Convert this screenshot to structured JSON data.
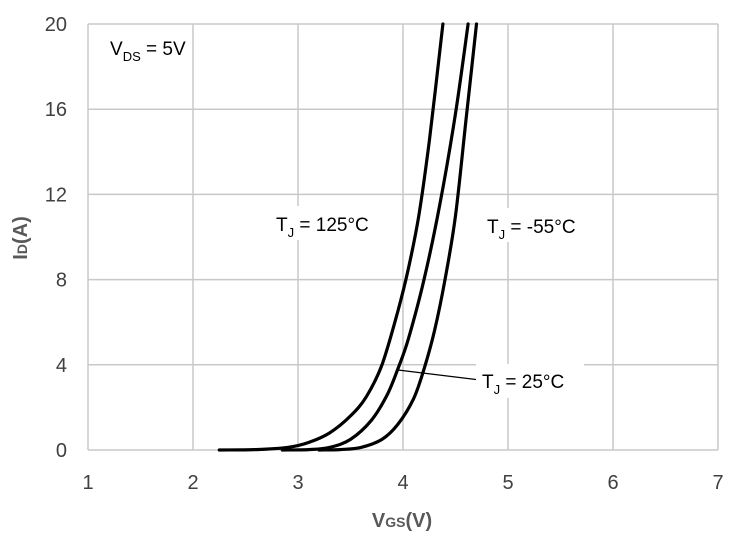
{
  "chart_data": {
    "type": "line",
    "title": "",
    "xlabel": {
      "main": "V",
      "sub": "GS",
      "unit": "(V)"
    },
    "ylabel": {
      "main": "I",
      "sub": "D",
      "unit": "(A)"
    },
    "xlim": [
      1,
      7
    ],
    "ylim": [
      0,
      20
    ],
    "xticks": [
      "1",
      "2",
      "3",
      "4",
      "5",
      "6",
      "7"
    ],
    "yticks": [
      "0",
      "4",
      "8",
      "12",
      "16",
      "20"
    ],
    "grid": true,
    "condition": {
      "main": "V",
      "sub": "DS",
      "rest": " = 5V"
    },
    "series": [
      {
        "name": "TJ = 125°C",
        "label": {
          "main": "T",
          "sub": "J",
          "rest": " = 125°C"
        },
        "points": [
          [
            2.25,
            0
          ],
          [
            2.6,
            0.02
          ],
          [
            2.9,
            0.12
          ],
          [
            3.1,
            0.35
          ],
          [
            3.3,
            0.8
          ],
          [
            3.5,
            1.6
          ],
          [
            3.65,
            2.5
          ],
          [
            3.8,
            4.0
          ],
          [
            3.95,
            6.5
          ],
          [
            4.05,
            8.5
          ],
          [
            4.15,
            11.0
          ],
          [
            4.25,
            14.5
          ],
          [
            4.38,
            20
          ]
        ]
      },
      {
        "name": "TJ = 25°C",
        "label": {
          "main": "T",
          "sub": "J",
          "rest": " = 25°C"
        },
        "points": [
          [
            2.85,
            0
          ],
          [
            3.1,
            0.02
          ],
          [
            3.3,
            0.12
          ],
          [
            3.5,
            0.5
          ],
          [
            3.7,
            1.4
          ],
          [
            3.85,
            2.6
          ],
          [
            3.95,
            3.8
          ],
          [
            4.05,
            5.2
          ],
          [
            4.2,
            8.0
          ],
          [
            4.35,
            11.5
          ],
          [
            4.5,
            15.8
          ],
          [
            4.62,
            20
          ]
        ]
      },
      {
        "name": "TJ = -55°C",
        "label": {
          "main": "T",
          "sub": "J",
          "rest": " = -55°C"
        },
        "points": [
          [
            3.2,
            0
          ],
          [
            3.4,
            0.02
          ],
          [
            3.6,
            0.12
          ],
          [
            3.8,
            0.5
          ],
          [
            3.95,
            1.2
          ],
          [
            4.1,
            2.4
          ],
          [
            4.2,
            3.8
          ],
          [
            4.3,
            5.6
          ],
          [
            4.4,
            8.0
          ],
          [
            4.5,
            11.0
          ],
          [
            4.6,
            15.5
          ],
          [
            4.7,
            20
          ]
        ]
      }
    ]
  }
}
